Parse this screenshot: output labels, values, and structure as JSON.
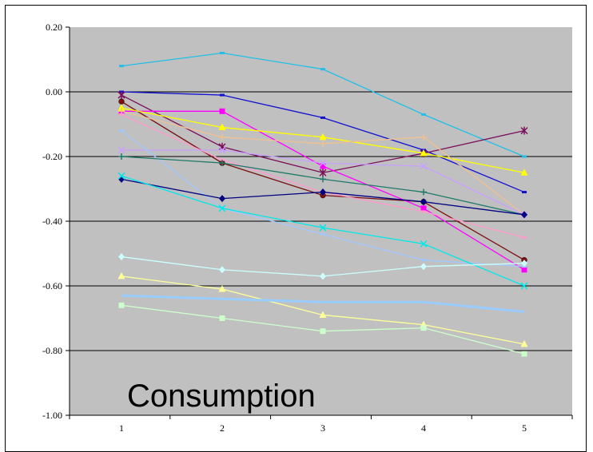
{
  "chart_data": {
    "type": "line",
    "title": "",
    "xlabel": "",
    "ylabel": "",
    "overlay_text": "Consumption",
    "x": [
      1,
      2,
      3,
      4,
      5
    ],
    "x_tick_labels": [
      "1",
      "2",
      "3",
      "4",
      "5"
    ],
    "ylim": [
      -1.0,
      0.2
    ],
    "y_tick_labels": [
      "0.20",
      "0.00",
      "-0.20",
      "-0.40",
      "-0.60",
      "-0.80",
      "-1.00"
    ],
    "y_ticks": [
      0.2,
      0.0,
      -0.2,
      -0.4,
      -0.6,
      -0.8,
      -1.0
    ],
    "plot_background": "#c0c0c0",
    "grid": "horizontal",
    "legend": "none",
    "series": [
      {
        "color": "#1fbfe8",
        "marker": "dash",
        "values": [
          0.08,
          0.12,
          0.07,
          -0.07,
          -0.2
        ]
      },
      {
        "color": "#1010d0",
        "marker": "dash",
        "values": [
          0.0,
          -0.01,
          -0.08,
          -0.18,
          -0.31
        ]
      },
      {
        "color": "#7a0f5a",
        "marker": "star",
        "values": [
          -0.01,
          -0.17,
          -0.25,
          -0.19,
          -0.12
        ]
      },
      {
        "color": "#7a1010",
        "marker": "circle",
        "values": [
          -0.03,
          -0.22,
          -0.32,
          -0.34,
          -0.52
        ]
      },
      {
        "color": "#ff00ff",
        "marker": "square",
        "values": [
          -0.06,
          -0.06,
          -0.23,
          -0.36,
          -0.55
        ]
      },
      {
        "color": "#ffff00",
        "marker": "triangle",
        "values": [
          -0.05,
          -0.11,
          -0.14,
          -0.19,
          -0.25
        ]
      },
      {
        "color": "#f0c090",
        "marker": "plus",
        "values": [
          -0.06,
          -0.14,
          -0.16,
          -0.14,
          -0.38
        ]
      },
      {
        "color": "#ff99cc",
        "marker": "dash",
        "values": [
          -0.07,
          -0.21,
          -0.31,
          -0.37,
          -0.45
        ]
      },
      {
        "color": "#c8a0ff",
        "marker": "x",
        "values": [
          -0.18,
          -0.18,
          -0.22,
          -0.23,
          -0.38
        ]
      },
      {
        "color": "#a0c8ff",
        "marker": "dash",
        "values": [
          -0.12,
          -0.36,
          -0.44,
          -0.52,
          -0.54
        ]
      },
      {
        "color": "#1e7a6a",
        "marker": "plus",
        "values": [
          -0.2,
          -0.22,
          -0.27,
          -0.31,
          -0.38
        ]
      },
      {
        "color": "#000080",
        "marker": "diamond",
        "values": [
          -0.27,
          -0.33,
          -0.31,
          -0.34,
          -0.38
        ]
      },
      {
        "color": "#00e8e8",
        "marker": "x",
        "values": [
          -0.26,
          -0.36,
          -0.42,
          -0.47,
          -0.6
        ]
      },
      {
        "color": "#ccffff",
        "marker": "diamond",
        "values": [
          -0.51,
          -0.55,
          -0.57,
          -0.54,
          -0.53
        ]
      },
      {
        "color": "#ffff99",
        "marker": "triangle",
        "values": [
          -0.57,
          -0.61,
          -0.69,
          -0.72,
          -0.78
        ]
      },
      {
        "color": "#99ccff",
        "marker": "none",
        "values": [
          -0.63,
          -0.64,
          -0.65,
          -0.65,
          -0.68
        ]
      },
      {
        "color": "#ccffcc",
        "marker": "square",
        "values": [
          -0.66,
          -0.7,
          -0.74,
          -0.73,
          -0.81
        ]
      }
    ]
  }
}
